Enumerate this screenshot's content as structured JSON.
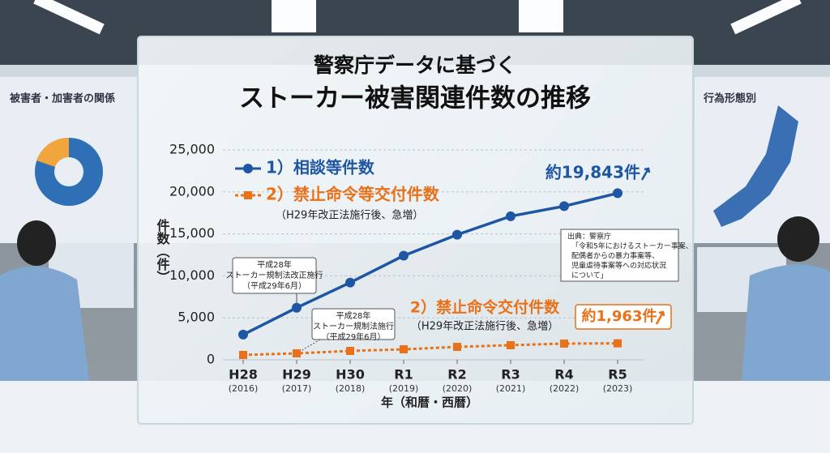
{
  "chart_data": {
    "type": "line",
    "title": "警察庁データに基づく",
    "subtitle": "ストーカー被害関連件数の推移",
    "y_label": "件数（件）",
    "x_label": "年（和暦・西暦）",
    "categories": [
      "H28",
      "H29",
      "H30",
      "R1",
      "R2",
      "R3",
      "R4",
      "R5"
    ],
    "years": [
      "(2016)",
      "(2017)",
      "(2018)",
      "(2019)",
      "(2020)",
      "(2021)",
      "(2022)",
      "(2023)"
    ],
    "ylim": [
      0,
      25000
    ],
    "yticks": [
      0,
      {
        "value": 5000,
        "label": "5,000"
      },
      {
        "value": 10000,
        "label": "10,000"
      },
      {
        "value": 15000,
        "label": "15,000"
      },
      {
        "value": 20000,
        "label": "20,000"
      },
      {
        "value": 25000,
        "label": "25,000"
      }
    ],
    "grid": true,
    "series": [
      {
        "name": "1）相談等件数",
        "color": "#1f56a3",
        "marker": "circle",
        "dashed": false,
        "values": [
          3000,
          6200,
          9200,
          12400,
          14900,
          17100,
          18300,
          19843
        ],
        "value_labels": [
          null,
          null,
          null,
          null,
          null,
          null,
          null,
          "約19,843件"
        ]
      },
      {
        "name": "2）禁止命令等交付件数",
        "note": "（H29年改正法施行後、急増）",
        "color": "#e8711a",
        "marker": "square",
        "dashed": true,
        "values": [
          580,
          770,
          1060,
          1250,
          1540,
          1740,
          1930,
          1963
        ],
        "value_labels": [
          null,
          null,
          null,
          null,
          null,
          null,
          null,
          "約1,963件"
        ]
      }
    ],
    "series_annotation": {
      "title": "2）禁止命令交付件数",
      "note": "（H29年改正法施行後、急増）"
    },
    "callouts": [
      {
        "lines": [
          "平成28年",
          "ストーカー規制法改正施行",
          "（平成29年6月）"
        ]
      },
      {
        "lines": [
          "平成28年",
          "ストーカー規制法施行",
          "（平成29年6月）"
        ]
      }
    ],
    "source": [
      "出典：警察庁",
      "「令和5年におけるストーカー事案、",
      "配偶者からの暴力事案等、",
      "児童虐待事案等への対応状況",
      "について」"
    ]
  },
  "background": {
    "left_screen_title": "被害者・加害者の関係",
    "right_screen_title": "行為形態別"
  }
}
